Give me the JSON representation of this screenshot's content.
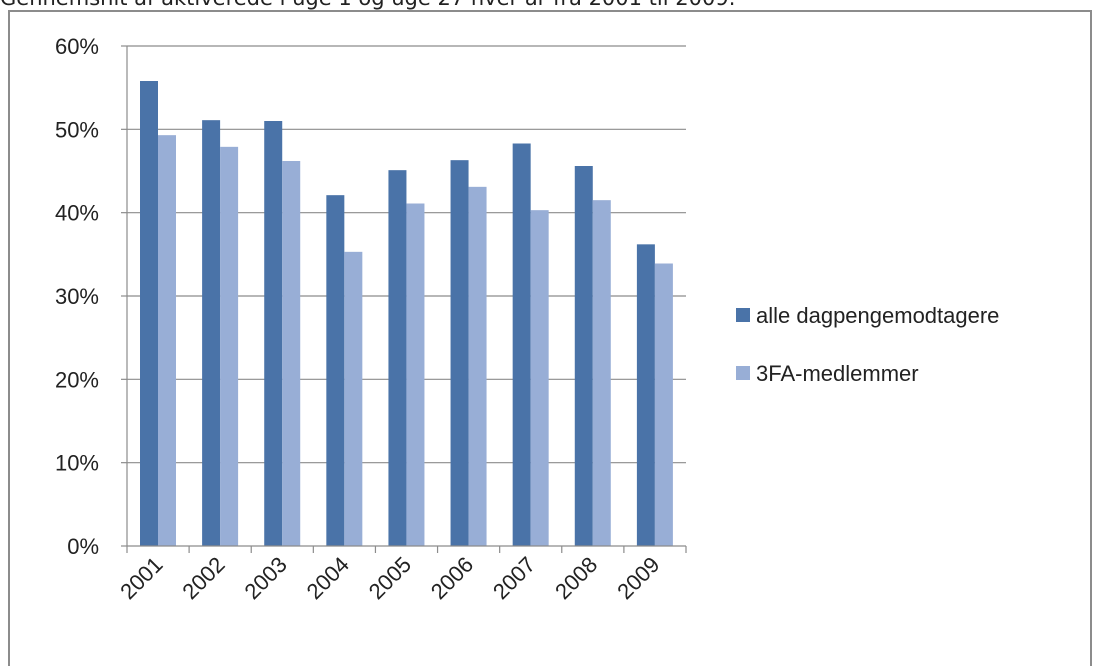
{
  "caption": "Gennemsnit af aktiverede i uge 1 og uge 27 hver år fra 2001 til 2009.",
  "chart_data": {
    "type": "bar",
    "title": "",
    "xlabel": "",
    "ylabel": "",
    "categories": [
      "2001",
      "2002",
      "2003",
      "2004",
      "2005",
      "2006",
      "2007",
      "2008",
      "2009"
    ],
    "series": [
      {
        "name": "alle dagpengemodtagere",
        "color": "#4a73a8",
        "values": [
          55.8,
          51.1,
          51.0,
          42.1,
          45.1,
          46.3,
          48.3,
          45.6,
          36.2
        ]
      },
      {
        "name": "3FA-medlemmer",
        "color": "#98aed6",
        "values": [
          49.3,
          47.9,
          46.2,
          35.3,
          41.1,
          43.1,
          40.3,
          41.5,
          33.9
        ]
      }
    ],
    "ylim": [
      0,
      60
    ],
    "yticks": [
      0,
      10,
      20,
      30,
      40,
      50,
      60
    ],
    "ytick_labels": [
      "0%",
      "10%",
      "20%",
      "30%",
      "40%",
      "50%",
      "60%"
    ],
    "grid": true,
    "legend_position": "right"
  }
}
